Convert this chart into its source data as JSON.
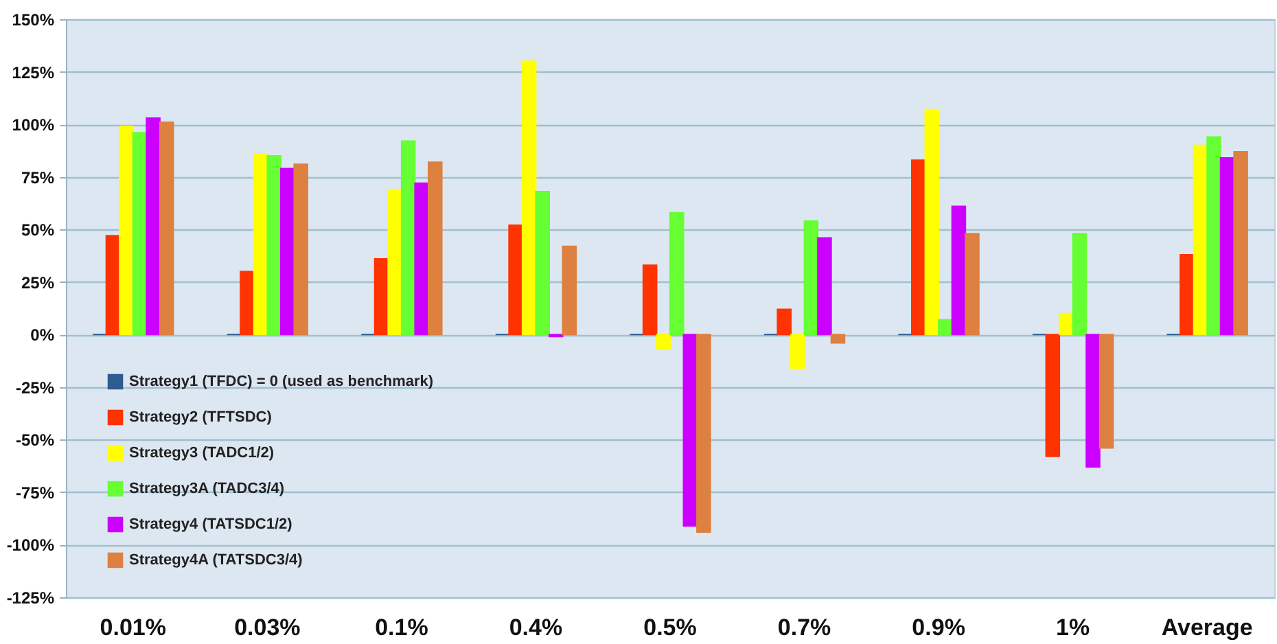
{
  "chart_data": {
    "type": "bar",
    "categories": [
      "0.01%",
      "0.03%",
      "0.1%",
      "0.4%",
      "0.5%",
      "0.7%",
      "0.9%",
      "1%",
      "Average"
    ],
    "series": [
      {
        "name": "Strategy1 (TFDC) = 0 (used as benchmark)",
        "color": "#2e5c8f",
        "values": [
          0,
          0,
          0,
          0,
          0,
          0,
          0,
          0,
          0
        ]
      },
      {
        "name": "Strategy2 (TFTSDC)",
        "color": "#ff3300",
        "values": [
          47,
          30,
          36,
          52,
          33,
          12,
          83,
          -58,
          38
        ]
      },
      {
        "name": "Strategy3 (TADC1/2)",
        "color": "#ffff00",
        "values": [
          99,
          86,
          69,
          130,
          -7,
          -16,
          107,
          10,
          90
        ]
      },
      {
        "name": "Strategy3A (TADC3/4)",
        "color": "#66ff33",
        "values": [
          96,
          85,
          92,
          68,
          58,
          54,
          7,
          48,
          94
        ]
      },
      {
        "name": "Strategy4 (TATSDC1/2)",
        "color": "#cc00ff",
        "values": [
          103,
          79,
          72,
          -1,
          -91,
          46,
          61,
          -63,
          84
        ]
      },
      {
        "name": "Strategy4A (TATSDC3/4)",
        "color": "#dd8040",
        "values": [
          101,
          81,
          82,
          42,
          -94,
          -4,
          48,
          -54,
          87
        ]
      }
    ],
    "ylim": [
      -125,
      150
    ],
    "yticks": [
      {
        "value": -125,
        "label": "-125%"
      },
      {
        "value": -100,
        "label": "-100%"
      },
      {
        "value": -75,
        "label": "-75%"
      },
      {
        "value": -50,
        "label": "-50%"
      },
      {
        "value": -25,
        "label": "-25%"
      },
      {
        "value": 0,
        "label": "0%"
      },
      {
        "value": 25,
        "label": "25%"
      },
      {
        "value": 50,
        "label": "50%"
      },
      {
        "value": 75,
        "label": "75%"
      },
      {
        "value": 100,
        "label": "100%"
      },
      {
        "value": 125,
        "label": "125%"
      },
      {
        "value": 150,
        "label": "150%"
      }
    ],
    "grid": "y",
    "legend": "bottom left"
  }
}
